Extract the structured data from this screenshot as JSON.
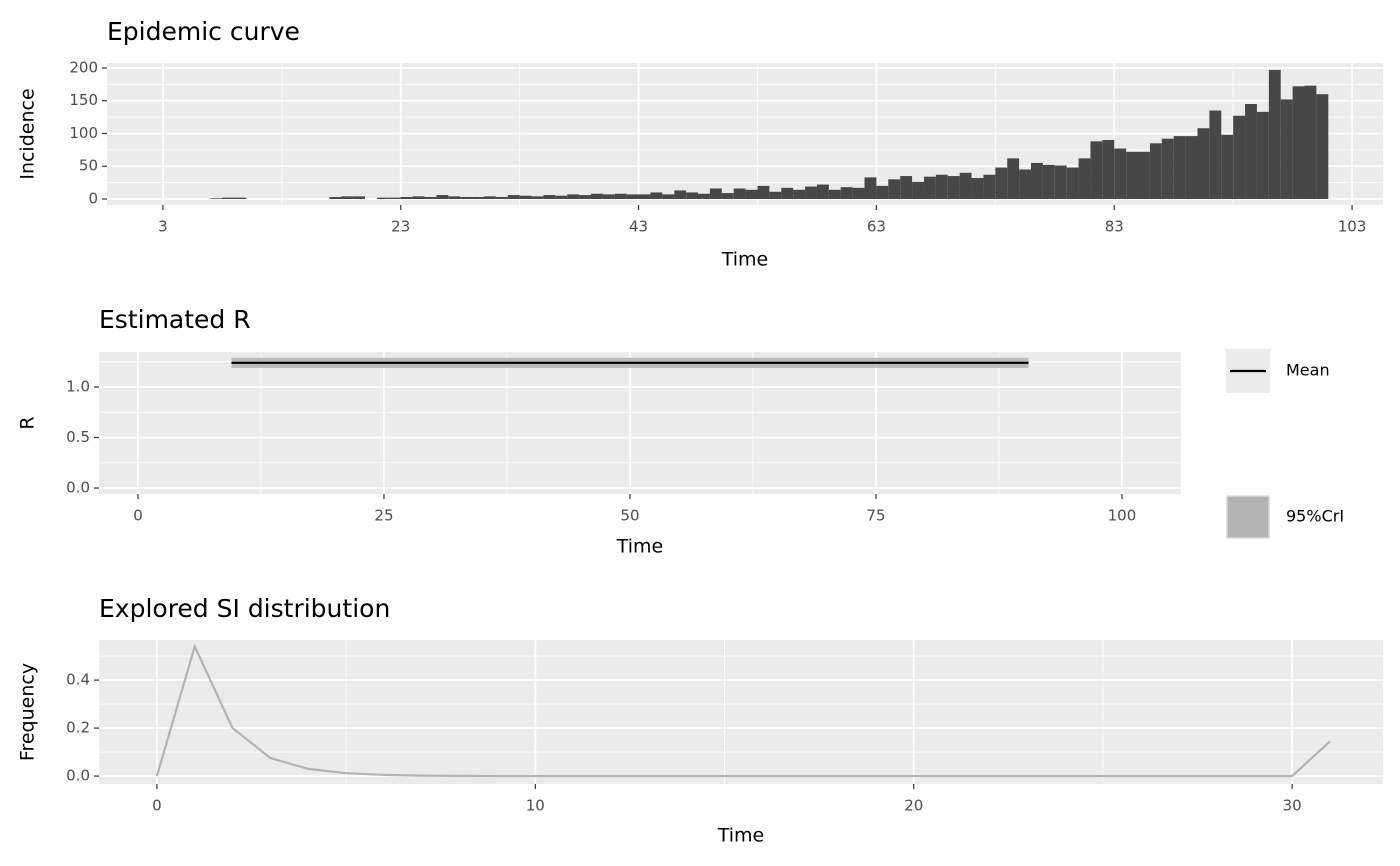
{
  "chart_data": [
    {
      "type": "histogram",
      "title": "Epidemic curve",
      "xlabel": "Time",
      "ylabel": "Incidence",
      "color": "#474747",
      "bins": [
        1,
        2,
        3,
        4,
        5,
        6,
        7,
        8,
        9,
        10,
        11,
        12,
        13,
        14,
        15,
        16,
        17,
        18,
        19,
        20,
        21,
        22,
        23,
        24,
        25,
        26,
        27,
        28,
        29,
        30,
        31,
        32,
        33,
        34,
        35,
        36,
        37,
        38,
        39,
        40,
        41,
        42,
        43,
        44,
        45,
        46,
        47,
        48,
        49,
        50,
        51,
        52,
        53,
        54,
        55,
        56,
        57,
        58,
        59,
        60,
        61,
        62,
        63,
        64,
        65,
        66,
        67,
        68,
        69,
        70,
        71,
        72,
        73,
        74,
        75,
        76,
        77,
        78,
        79,
        80,
        81,
        82,
        83,
        84,
        85,
        86,
        87,
        88,
        89,
        90,
        91,
        92,
        93,
        94,
        95,
        96,
        97,
        98,
        99,
        100,
        101
      ],
      "values": [
        0,
        0,
        0,
        0,
        0,
        0,
        1,
        2,
        2,
        0,
        0,
        0,
        0,
        0,
        0,
        0,
        3,
        4,
        4,
        0,
        2,
        2,
        3,
        4,
        3,
        6,
        4,
        3,
        3,
        4,
        3,
        6,
        5,
        4,
        6,
        5,
        7,
        6,
        8,
        7,
        8,
        7,
        7,
        10,
        7,
        13,
        10,
        8,
        16,
        9,
        16,
        14,
        20,
        11,
        17,
        14,
        19,
        22,
        14,
        18,
        17,
        33,
        20,
        30,
        35,
        26,
        34,
        37,
        35,
        40,
        32,
        37,
        48,
        62,
        45,
        55,
        52,
        51,
        48,
        62,
        88,
        90,
        77,
        72,
        72,
        85,
        92,
        96,
        96,
        108,
        135,
        98,
        127,
        145,
        133,
        197,
        152,
        172,
        173,
        160
      ],
      "xlim": [
        -1.7,
        105.6
      ],
      "xticks": [
        3,
        23,
        43,
        63,
        83,
        103
      ],
      "ylim": [
        -9.2,
        207.6
      ],
      "yticks": [
        0,
        50,
        100,
        150,
        200
      ],
      "grid": true
    },
    {
      "type": "line",
      "title": "Estimated R",
      "xlabel": "Time",
      "ylabel": "R",
      "x": [
        9.5,
        90.5
      ],
      "series": [
        {
          "name": "Mean",
          "color": "#000000",
          "values": [
            1.24,
            1.24
          ]
        }
      ],
      "band": {
        "name": "95%CrI",
        "color": "#b3b3b3",
        "lower": [
          1.19,
          1.19
        ],
        "upper": [
          1.29,
          1.29
        ]
      },
      "xlim": [
        -3.96,
        106.0
      ],
      "xticks": [
        0,
        25,
        50,
        75,
        100
      ],
      "ylim": [
        -0.059,
        1.347
      ],
      "yticks": [
        {
          "value": 0,
          "label": "0.0"
        },
        {
          "value": 0.5,
          "label": "0.5"
        },
        {
          "value": 1,
          "label": "1.0"
        }
      ],
      "grid": true,
      "legend": "right"
    },
    {
      "type": "line",
      "title": "Explored SI distribution",
      "xlabel": "Time",
      "ylabel": "Frequency",
      "x": [
        0,
        1,
        2,
        3,
        4,
        5,
        6,
        7,
        8,
        9,
        10,
        11,
        12,
        13,
        14,
        15,
        16,
        17,
        18,
        19,
        20,
        21,
        22,
        23,
        24,
        25,
        26,
        27,
        28,
        29,
        30,
        31
      ],
      "series": [
        {
          "color": "#b3b3b3",
          "values": [
            0,
            0.54,
            0.2,
            0.075,
            0.03,
            0.012,
            0.005,
            0.002,
            0.001,
            0,
            0,
            0,
            0,
            0,
            0,
            0,
            0,
            0,
            0,
            0,
            0,
            0,
            0,
            0,
            0,
            0,
            0,
            0,
            0,
            0,
            0,
            0.145
          ]
        }
      ],
      "xlim": [
        -1.53,
        32.4
      ],
      "xticks": [
        0,
        10,
        20,
        30
      ],
      "ylim": [
        -0.033,
        0.567
      ],
      "yticks": [
        {
          "value": 0,
          "label": "0.0"
        },
        {
          "value": 0.2,
          "label": "0.2"
        },
        {
          "value": 0.4,
          "label": "0.4"
        }
      ],
      "grid": true
    }
  ]
}
